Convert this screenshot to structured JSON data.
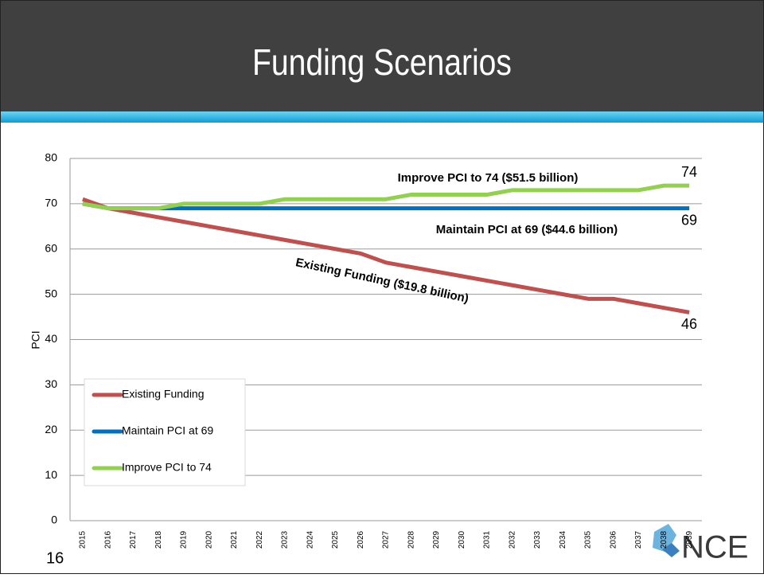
{
  "slide": {
    "title": "Funding Scenarios",
    "page_number": "16",
    "logo": "NCE"
  },
  "chart_data": {
    "type": "line",
    "y_label": "PCI",
    "categories": [
      "2015",
      "2016",
      "2017",
      "2018",
      "2019",
      "2020",
      "2021",
      "2022",
      "2023",
      "2024",
      "2025",
      "2026",
      "2027",
      "2028",
      "2029",
      "2030",
      "2031",
      "2032",
      "2033",
      "2034",
      "2035",
      "2036",
      "2037",
      "2038",
      "2039"
    ],
    "series": [
      {
        "name": "Existing Funding",
        "color": "#c0504d",
        "values": [
          71,
          69,
          68,
          67,
          66,
          65,
          64,
          63,
          62,
          61,
          60,
          59,
          57,
          56,
          55,
          54,
          53,
          52,
          51,
          50,
          49,
          49,
          48,
          47,
          46
        ]
      },
      {
        "name": "Maintain PCI at 69",
        "color": "#0070c0",
        "values": [
          70,
          69,
          69,
          69,
          69,
          69,
          69,
          69,
          69,
          69,
          69,
          69,
          69,
          69,
          69,
          69,
          69,
          69,
          69,
          69,
          69,
          69,
          69,
          69,
          69
        ]
      },
      {
        "name": "Improve PCI to 74",
        "color": "#92d050",
        "values": [
          70,
          69,
          69,
          69,
          70,
          70,
          70,
          70,
          71,
          71,
          71,
          71,
          71,
          72,
          72,
          72,
          72,
          73,
          73,
          73,
          73,
          73,
          73,
          74,
          74
        ]
      }
    ],
    "annotations": [
      "Improve PCI to 74 ($51.5 billion)",
      "Maintain PCI at 69 ($44.6 billion)",
      "Existing Funding ($19.8 billion)"
    ],
    "ylim": [
      0,
      80
    ],
    "yticks": [
      0,
      10,
      20,
      30,
      40,
      50,
      60,
      70,
      80
    ],
    "grid": true,
    "legend": "lower left"
  }
}
